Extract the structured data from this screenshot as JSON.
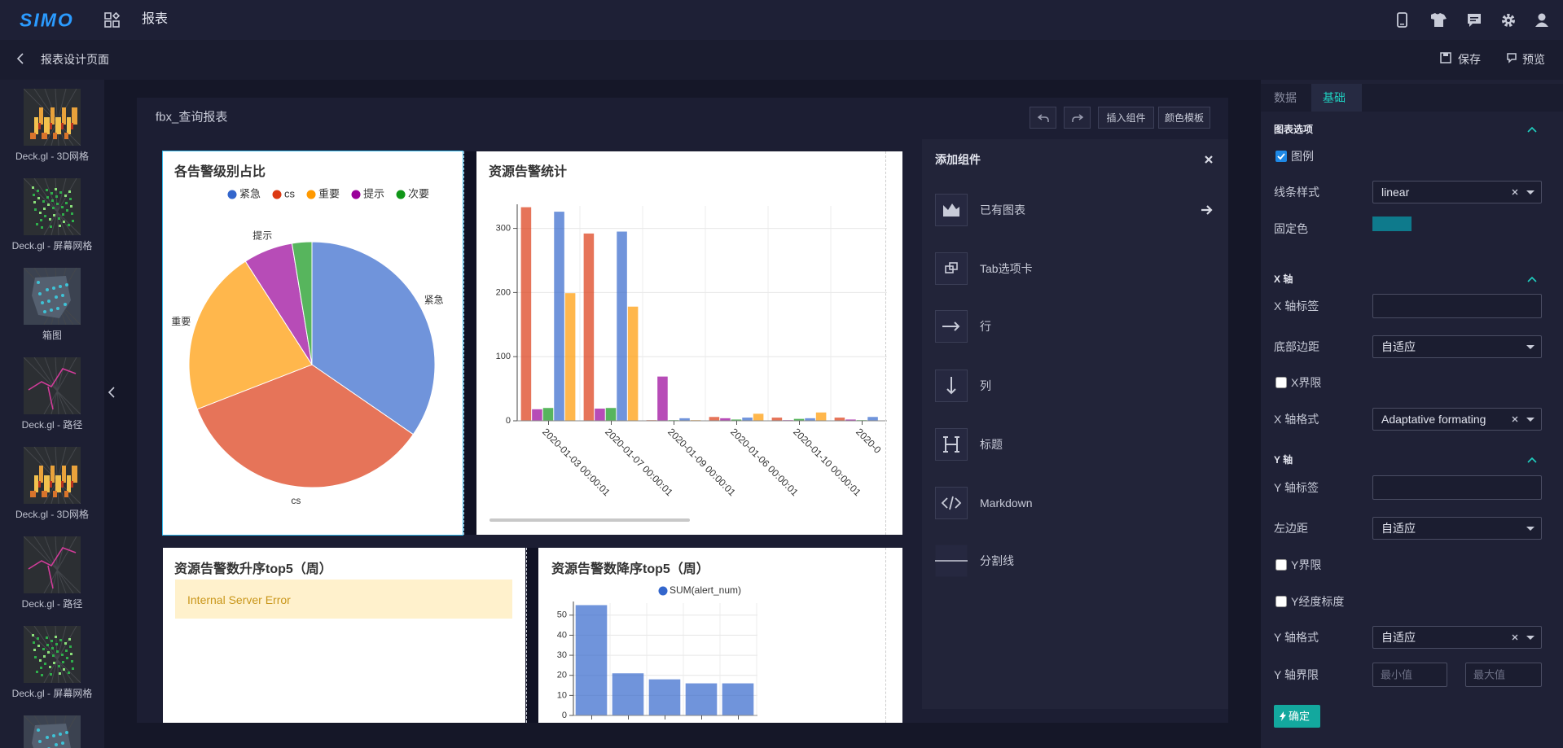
{
  "header": {
    "logo": "SIMO",
    "title": "报表"
  },
  "subheader": {
    "title": "报表设计页面",
    "save": "保存",
    "preview": "预览"
  },
  "sidebar": {
    "items": [
      {
        "label": "Deck.gl - 3D网格"
      },
      {
        "label": "Deck.gl - 屏幕网格"
      },
      {
        "label": "箱图"
      },
      {
        "label": "Deck.gl - 路径"
      },
      {
        "label": "Deck.gl - 3D网格"
      },
      {
        "label": "Deck.gl - 路径"
      },
      {
        "label": "Deck.gl - 屏幕网格"
      }
    ]
  },
  "canvas": {
    "title": "fbx_查询报表",
    "buttons": [
      "插入组件",
      "颜色模板"
    ]
  },
  "error_panel": {
    "title": "资源告警数升序top5（周）",
    "message": "Internal Server Error"
  },
  "add_component": {
    "title": "添加组件",
    "items": [
      "已有图表",
      "Tab选项卡",
      "行",
      "列",
      "标题",
      "Markdown",
      "分割线"
    ]
  },
  "properties": {
    "tabs": [
      "数据",
      "基础"
    ],
    "active_tab": 1,
    "sections": [
      {
        "title": "图表选项",
        "rows": [
          {
            "label": "图例",
            "control": "checkbox",
            "checked": true
          },
          {
            "label": "线条样式",
            "control": "select",
            "value": "linear",
            "clearable": true
          },
          {
            "label": "固定色",
            "control": "color",
            "value": "#0e7a8c"
          }
        ]
      },
      {
        "title": "X 轴",
        "rows": [
          {
            "label": "X 轴标签",
            "control": "input"
          },
          {
            "label": "底部边距",
            "control": "select",
            "value": "自适应",
            "clearable": false
          },
          {
            "label": "X界限",
            "control": "checkbox",
            "checked": false
          },
          {
            "label": "X 轴格式",
            "control": "select",
            "value": "Adaptative formating",
            "clearable": true
          }
        ]
      },
      {
        "title": "Y 轴",
        "rows": [
          {
            "label": "Y 轴标签",
            "control": "input"
          },
          {
            "label": "左边距",
            "control": "select",
            "value": "自适应",
            "clearable": false
          },
          {
            "label": "Y界限",
            "control": "checkbox",
            "checked": false
          },
          {
            "label": "Y经度标度",
            "control": "checkbox",
            "checked": false
          },
          {
            "label": "Y 轴格式",
            "control": "select",
            "value": "自适应",
            "clearable": true
          },
          {
            "label": "Y 轴界限",
            "control": "range",
            "placeholders": [
              "最小值",
              "最大值"
            ]
          }
        ]
      }
    ],
    "submit": "确定"
  },
  "chart_data": [
    {
      "type": "pie",
      "title": "各告警级别占比",
      "categories": [
        "紧急",
        "cs",
        "重要",
        "提示",
        "次要"
      ],
      "values": [
        34.6,
        34.5,
        21.8,
        6.5,
        2.6
      ],
      "colors": [
        "#3366cc",
        "#dc3912",
        "#ff9900",
        "#990099",
        "#109618"
      ],
      "legend": "top"
    },
    {
      "type": "bar",
      "title": "资源告警统计",
      "categories": [
        "2020-01-03 00:00:01",
        "2020-01-07 00:00:01",
        "2020-01-09 00:00:01",
        "2020-01-06 00:00:01",
        "2020-01-10 00:00:01",
        "2020-0"
      ],
      "series": [
        {
          "color": "#dc3912",
          "values": [
            333,
            292,
            1,
            6,
            5,
            5
          ]
        },
        {
          "color": "#990099",
          "values": [
            18,
            19,
            69,
            4,
            1,
            2
          ]
        },
        {
          "color": "#109618",
          "values": [
            20,
            20,
            1,
            2,
            3,
            1
          ]
        },
        {
          "color": "#3366cc",
          "values": [
            326,
            295,
            4,
            5,
            4,
            6
          ]
        },
        {
          "color": "#ff9900",
          "values": [
            199,
            178,
            1,
            11,
            13,
            null
          ]
        }
      ],
      "ylim": [
        0,
        335
      ],
      "yticks": [
        0,
        100,
        200,
        300
      ],
      "grid": true
    },
    {
      "type": "bar",
      "title": "资源告警数降序top5（周）",
      "categories": [
        null,
        null,
        null,
        null,
        null
      ],
      "series": [
        {
          "name": "SUM(alert_num)",
          "color": "#3366cc",
          "values": [
            55,
            21,
            18,
            16,
            16
          ]
        }
      ],
      "ylim": [
        0,
        56
      ],
      "yticks": [
        0,
        10,
        20,
        30,
        40,
        50
      ],
      "grid": true,
      "legend": "top"
    }
  ]
}
